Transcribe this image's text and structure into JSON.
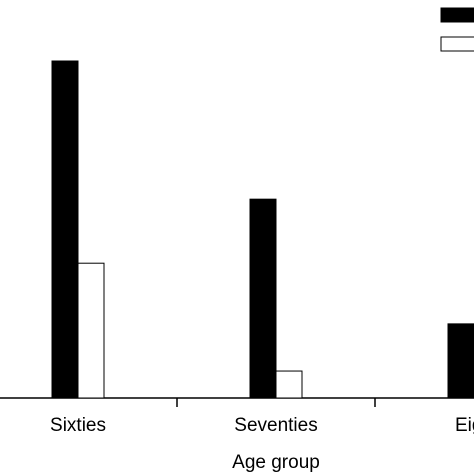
{
  "chart_data": {
    "type": "bar",
    "categories": [
      "Sixties",
      "Seventies",
      "Eigh"
    ],
    "xlabel": "Age group",
    "ylabel": "",
    "ylim": [
      0,
      100
    ],
    "legend_position": "top-right",
    "grid": false,
    "series": [
      {
        "values": [
          100,
          59,
          22
        ],
        "color": "#000000"
      },
      {
        "values": [
          40,
          8,
          null
        ],
        "color": "#ffffff"
      }
    ]
  }
}
